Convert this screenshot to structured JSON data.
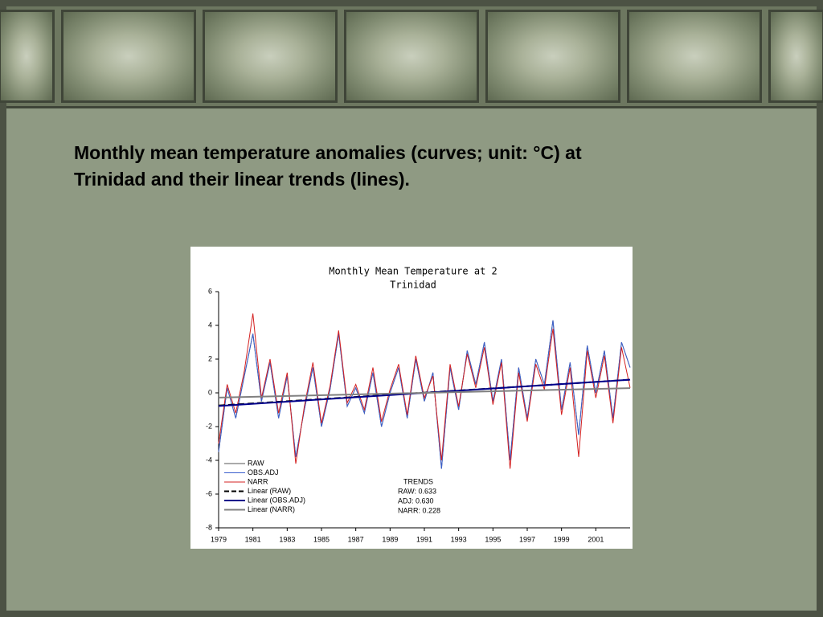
{
  "heading": [
    "Monthly mean temperature anomalies (curves; unit: °C) at",
    "Trinidad and their linear trends (lines)."
  ],
  "chart_data": {
    "type": "line",
    "title": [
      "Monthly Mean Temperature at 2",
      "Trinidad"
    ],
    "xlim": [
      1979,
      2003
    ],
    "xticks": [
      1979,
      1981,
      1983,
      1985,
      1987,
      1989,
      1991,
      1993,
      1995,
      1997,
      1999,
      2001
    ],
    "ylim": [
      -8,
      6
    ],
    "yticks": [
      -8,
      -6,
      -4,
      -2,
      0,
      2,
      4,
      6
    ],
    "series": [
      {
        "name": "RAW",
        "color": "#555555",
        "x": [
          1979,
          1979.5,
          1980,
          1980.5,
          1981,
          1981.5,
          1982,
          1982.5,
          1983,
          1983.5,
          1984,
          1984.5,
          1985,
          1985.5,
          1986,
          1986.5,
          1987,
          1987.5,
          1988,
          1988.5,
          1989,
          1989.5,
          1990,
          1990.5,
          1991,
          1991.5,
          1992,
          1992.5,
          1993,
          1993.5,
          1994,
          1994.5,
          1995,
          1995.5,
          1996,
          1996.5,
          1997,
          1997.5,
          1998,
          1998.5,
          1999,
          1999.5,
          2000,
          2000.5,
          2001,
          2001.5,
          2002,
          2002.5,
          2003
        ],
        "values": [
          -3.5,
          0.3,
          -1.5,
          1.0,
          3.5,
          -0.5,
          1.8,
          -1.5,
          1.0,
          -3.8,
          -1.0,
          1.5,
          -2.0,
          0.2,
          3.5,
          -0.8,
          0.3,
          -1.2,
          1.2,
          -2.0,
          0.0,
          1.5,
          -1.5,
          2.0,
          -0.5,
          1.2,
          -4.5,
          1.5,
          -1.0,
          2.5,
          0.5,
          3.0,
          -0.5,
          2.0,
          -4.0,
          1.5,
          -1.5,
          2.0,
          0.5,
          4.3,
          -1.0,
          1.8,
          -2.5,
          2.8,
          0.0,
          2.5,
          -1.5,
          3.0,
          1.5
        ]
      },
      {
        "name": "OBS.ADJ",
        "color": "#3a5fcd",
        "x": [
          1979,
          1979.5,
          1980,
          1980.5,
          1981,
          1981.5,
          1982,
          1982.5,
          1983,
          1983.5,
          1984,
          1984.5,
          1985,
          1985.5,
          1986,
          1986.5,
          1987,
          1987.5,
          1988,
          1988.5,
          1989,
          1989.5,
          1990,
          1990.5,
          1991,
          1991.5,
          1992,
          1992.5,
          1993,
          1993.5,
          1994,
          1994.5,
          1995,
          1995.5,
          1996,
          1996.5,
          1997,
          1997.5,
          1998,
          1998.5,
          1999,
          1999.5,
          2000,
          2000.5,
          2001,
          2001.5,
          2002,
          2002.5,
          2003
        ],
        "values": [
          -3.5,
          0.3,
          -1.5,
          1.0,
          3.5,
          -0.5,
          1.8,
          -1.5,
          1.0,
          -3.8,
          -1.0,
          1.5,
          -2.0,
          0.2,
          3.5,
          -0.8,
          0.3,
          -1.2,
          1.2,
          -2.0,
          0.0,
          1.5,
          -1.5,
          2.0,
          -0.5,
          1.2,
          -4.5,
          1.5,
          -1.0,
          2.5,
          0.5,
          3.0,
          -0.5,
          2.0,
          -4.0,
          1.5,
          -1.5,
          2.0,
          0.5,
          4.3,
          -1.0,
          1.8,
          -2.5,
          2.8,
          0.0,
          2.5,
          -1.5,
          3.0,
          1.5
        ]
      },
      {
        "name": "NARR",
        "color": "#d42020",
        "x": [
          1979,
          1979.5,
          1980,
          1980.5,
          1981,
          1981.5,
          1982,
          1982.5,
          1983,
          1983.5,
          1984,
          1984.5,
          1985,
          1985.5,
          1986,
          1986.5,
          1987,
          1987.5,
          1988,
          1988.5,
          1989,
          1989.5,
          1990,
          1990.5,
          1991,
          1991.5,
          1992,
          1992.5,
          1993,
          1993.5,
          1994,
          1994.5,
          1995,
          1995.5,
          1996,
          1996.5,
          1997,
          1997.5,
          1998,
          1998.5,
          1999,
          1999.5,
          2000,
          2000.5,
          2001,
          2001.5,
          2002,
          2002.5,
          2003
        ],
        "values": [
          -3.0,
          0.5,
          -1.2,
          1.3,
          4.7,
          -0.3,
          2.0,
          -1.2,
          1.2,
          -4.2,
          -0.8,
          1.8,
          -1.8,
          0.4,
          3.7,
          -0.6,
          0.5,
          -1.0,
          1.5,
          -1.7,
          0.2,
          1.7,
          -1.3,
          2.2,
          -0.3,
          1.0,
          -4.0,
          1.7,
          -0.8,
          2.3,
          0.3,
          2.7,
          -0.7,
          1.8,
          -4.5,
          1.2,
          -1.7,
          1.7,
          0.2,
          3.8,
          -1.3,
          1.5,
          -3.8,
          2.5,
          -0.3,
          2.2,
          -1.8,
          2.7,
          0.3
        ]
      },
      {
        "name": "Linear (RAW)",
        "color": "#000000",
        "dash": true,
        "x": [
          1979,
          2003
        ],
        "values": [
          -0.75,
          0.78
        ]
      },
      {
        "name": "Linear (OBS.ADJ)",
        "color": "#00008b",
        "x": [
          1979,
          2003
        ],
        "values": [
          -0.78,
          0.78
        ]
      },
      {
        "name": "Linear (NARR)",
        "color": "#808080",
        "x": [
          1979,
          2003
        ],
        "values": [
          -0.28,
          0.28
        ]
      }
    ],
    "trends": [
      "TRENDS",
      "RAW: 0.633",
      "ADJ: 0.630",
      "NARR: 0.228"
    ]
  }
}
